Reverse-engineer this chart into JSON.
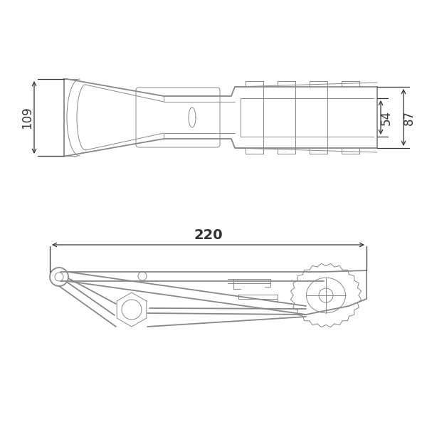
{
  "bg_color": "#ffffff",
  "line_color": "#888888",
  "dim_color": "#333333",
  "dim_109": "109",
  "dim_54": "54",
  "dim_87": "87",
  "dim_220": "220",
  "lw_main": 1.3,
  "lw_thin": 0.7,
  "lw_dim": 0.9
}
